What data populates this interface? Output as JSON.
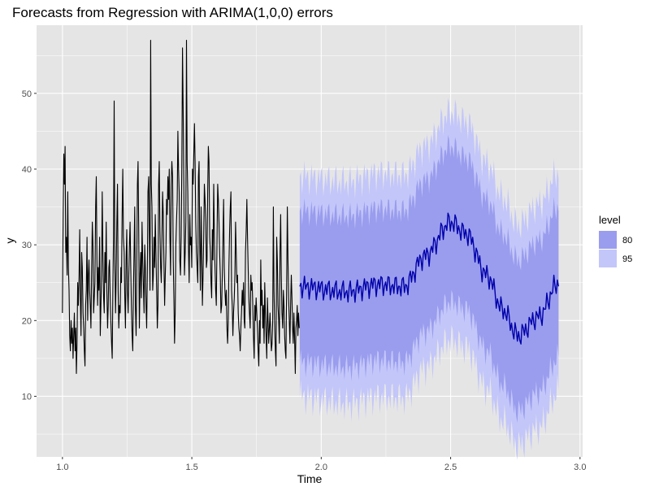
{
  "chart_data": {
    "type": "line",
    "title": "Forecasts from Regression with ARIMA(1,0,0) errors",
    "xlabel": "Time",
    "ylabel": "y",
    "xlim": [
      0.9,
      3.01
    ],
    "ylim": [
      2,
      59
    ],
    "x_ticks": [
      1.0,
      1.5,
      2.0,
      2.5,
      3.0
    ],
    "x_tick_labels": [
      "1.0",
      "1.5",
      "2.0",
      "2.5",
      "3.0"
    ],
    "y_ticks": [
      10,
      20,
      30,
      40,
      50
    ],
    "y_tick_labels": [
      "10",
      "20",
      "30",
      "40",
      "50"
    ],
    "grid": true,
    "legend": {
      "title": "level",
      "position": "right",
      "entries": [
        {
          "label": "80",
          "color": "#9a9ded"
        },
        {
          "label": "95",
          "color": "#c3c6f9"
        }
      ]
    },
    "colors": {
      "panel": "#e5e5e5",
      "grid_major": "#ffffff",
      "observed": "#000000",
      "forecast_mean": "#0000aa",
      "band_80": "#9a9ded",
      "band_95": "#c3c6f9"
    },
    "series": [
      {
        "kind": "observed",
        "x_start": 1.0,
        "x_end": 1.915,
        "values": [
          21,
          34,
          42,
          38,
          43,
          29,
          31,
          26,
          37,
          27,
          24,
          18,
          16,
          20,
          17,
          19,
          15,
          18,
          21,
          16,
          19,
          13,
          17,
          25,
          22,
          26,
          32,
          23,
          18,
          29,
          27,
          21,
          19,
          16,
          14,
          22,
          24,
          31,
          20,
          26,
          28,
          24,
          22,
          19,
          27,
          33,
          30,
          21,
          23,
          25,
          35,
          39,
          28,
          22,
          27,
          24,
          31,
          18,
          22,
          26,
          37,
          29,
          23,
          21,
          29,
          25,
          33,
          24,
          19,
          22,
          27,
          28,
          23,
          20,
          17,
          15,
          24,
          31,
          49,
          28,
          21,
          26,
          33,
          38,
          24,
          19,
          22,
          21,
          27,
          25,
          34,
          40,
          31,
          29,
          23,
          19,
          28,
          32,
          24,
          21,
          26,
          30,
          33,
          27,
          22,
          18,
          16,
          24,
          29,
          35,
          22,
          18,
          27,
          38,
          41,
          32,
          19,
          26,
          29,
          23,
          33,
          28,
          25,
          21,
          30,
          27,
          22,
          19,
          26,
          37,
          39,
          31,
          24,
          57,
          38,
          35,
          24,
          26,
          31,
          27,
          34,
          29,
          24,
          19,
          22,
          38,
          41,
          32,
          27,
          25,
          31,
          37,
          34,
          28,
          22,
          26,
          29,
          36,
          34,
          39,
          36,
          40,
          31,
          26,
          38,
          41,
          39,
          28,
          23,
          17,
          21,
          30,
          33,
          36,
          45,
          40,
          37,
          28,
          26,
          31,
          41,
          56,
          48,
          38,
          26,
          29,
          33,
          57,
          41,
          37,
          30,
          25,
          34,
          30,
          31,
          27,
          40,
          38,
          42,
          46,
          41,
          33,
          29,
          27,
          25,
          39,
          41,
          30,
          24,
          35,
          29,
          22,
          26,
          31,
          38,
          36,
          33,
          27,
          28,
          37,
          43,
          41,
          31,
          29,
          25,
          23,
          32,
          28,
          38,
          31,
          27,
          24,
          22,
          30,
          38,
          36,
          33,
          29,
          26,
          21,
          22,
          26,
          31,
          36,
          27,
          24,
          22,
          24,
          19,
          17,
          20,
          27,
          32,
          35,
          37,
          24,
          22,
          18,
          21,
          23,
          26,
          33,
          29,
          25,
          26,
          21,
          19,
          18,
          16,
          19,
          21,
          24,
          22,
          25,
          20,
          19,
          29,
          32,
          36,
          31,
          27,
          23,
          21,
          19,
          26,
          24,
          25,
          22,
          18,
          15,
          22,
          20,
          23,
          21,
          19,
          16,
          14,
          20,
          17,
          28,
          22,
          24,
          19,
          22,
          17,
          25,
          21,
          18,
          15,
          23,
          20,
          17,
          19,
          21,
          18,
          16,
          17,
          20,
          35,
          24,
          19,
          16,
          14,
          31,
          28,
          22,
          20,
          17,
          29,
          34,
          26,
          21,
          19,
          24,
          22,
          18,
          16,
          15,
          25,
          35,
          28,
          23,
          20,
          17,
          22,
          26,
          23,
          19,
          17,
          21,
          18,
          13,
          19,
          20,
          22,
          18,
          21,
          19
        ]
      },
      {
        "kind": "forecast",
        "x_start": 1.917,
        "x_end": 2.917,
        "mean_knots": [
          [
            1.917,
            24.5
          ],
          [
            2.1,
            23.8
          ],
          [
            2.22,
            24.8
          ],
          [
            2.32,
            24.5
          ],
          [
            2.4,
            28.5
          ],
          [
            2.5,
            33.0
          ],
          [
            2.56,
            31.5
          ],
          [
            2.64,
            26.0
          ],
          [
            2.7,
            21.5
          ],
          [
            2.76,
            18.0
          ],
          [
            2.84,
            20.5
          ],
          [
            2.917,
            25.0
          ]
        ],
        "lo80_knots": [
          [
            1.917,
            14.5
          ],
          [
            2.1,
            13.8
          ],
          [
            2.22,
            14.8
          ],
          [
            2.32,
            14.5
          ],
          [
            2.4,
            18.5
          ],
          [
            2.5,
            22.5
          ],
          [
            2.56,
            21.5
          ],
          [
            2.64,
            16.0
          ],
          [
            2.7,
            11.5
          ],
          [
            2.76,
            8.0
          ],
          [
            2.84,
            10.5
          ],
          [
            2.917,
            15.0
          ]
        ],
        "hi80_knots": [
          [
            1.917,
            34.5
          ],
          [
            2.1,
            33.8
          ],
          [
            2.22,
            34.8
          ],
          [
            2.32,
            34.5
          ],
          [
            2.4,
            38.5
          ],
          [
            2.5,
            43.0
          ],
          [
            2.56,
            41.5
          ],
          [
            2.64,
            36.0
          ],
          [
            2.7,
            31.5
          ],
          [
            2.76,
            28.0
          ],
          [
            2.84,
            30.5
          ],
          [
            2.917,
            35.0
          ]
        ],
        "lo95_knots": [
          [
            1.917,
            10.0
          ],
          [
            2.1,
            9.0
          ],
          [
            2.22,
            10.0
          ],
          [
            2.32,
            9.8
          ],
          [
            2.4,
            13.8
          ],
          [
            2.5,
            17.5
          ],
          [
            2.56,
            16.5
          ],
          [
            2.64,
            11.0
          ],
          [
            2.7,
            6.8
          ],
          [
            2.76,
            3.5
          ],
          [
            2.84,
            5.8
          ],
          [
            2.917,
            10.5
          ]
        ],
        "hi95_knots": [
          [
            1.917,
            39.0
          ],
          [
            2.1,
            38.3
          ],
          [
            2.22,
            39.5
          ],
          [
            2.32,
            39.2
          ],
          [
            2.4,
            43.0
          ],
          [
            2.5,
            47.5
          ],
          [
            2.56,
            46.3
          ],
          [
            2.64,
            40.8
          ],
          [
            2.7,
            36.3
          ],
          [
            2.76,
            32.6
          ],
          [
            2.84,
            35.3
          ],
          [
            2.917,
            39.5
          ]
        ]
      }
    ]
  }
}
